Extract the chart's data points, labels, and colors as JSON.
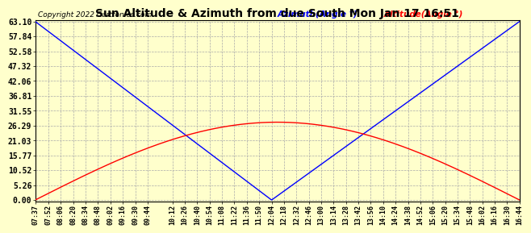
{
  "title": "Sun Altitude & Azimuth from due South Mon Jan 17 16:51",
  "copyright": "Copyright 2022 Cartronics.com",
  "legend_azimuth": "Azimuth(Angle °)",
  "legend_altitude": "Altitude(Angle °)",
  "azimuth_color": "blue",
  "altitude_color": "red",
  "background_color": "#ffffcc",
  "grid_color": "#aaaaaa",
  "yticks": [
    0.0,
    5.26,
    10.52,
    15.77,
    21.03,
    26.29,
    31.55,
    36.81,
    42.06,
    47.32,
    52.58,
    57.84,
    63.1
  ],
  "ymax": 63.1,
  "ymin": 0.0,
  "max_altitude": 27.5,
  "max_azimuth": 63.1,
  "solar_noon_minutes": 724,
  "xtick_labels": [
    "07:37",
    "07:52",
    "08:06",
    "08:20",
    "08:34",
    "08:48",
    "09:02",
    "09:16",
    "09:30",
    "09:44",
    "10:12",
    "10:26",
    "10:40",
    "10:54",
    "11:08",
    "11:22",
    "11:36",
    "11:50",
    "12:04",
    "12:18",
    "12:32",
    "12:46",
    "13:00",
    "13:14",
    "13:28",
    "13:42",
    "13:56",
    "14:10",
    "14:24",
    "14:38",
    "14:52",
    "15:06",
    "15:20",
    "15:34",
    "15:48",
    "16:02",
    "16:16",
    "16:30",
    "16:44"
  ]
}
